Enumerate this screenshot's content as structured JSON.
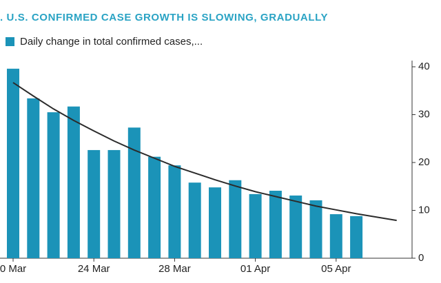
{
  "chart_data": {
    "type": "bar",
    "title": ". U.S. CONFIRMED CASE GROWTH IS SLOWING, GRADUALLY",
    "categories": [
      "0 Mar",
      null,
      null,
      null,
      "24 Mar",
      null,
      null,
      null,
      "28 Mar",
      null,
      null,
      null,
      "01 Apr",
      null,
      null,
      null,
      "05 Apr",
      null,
      null,
      null
    ],
    "series": [
      {
        "name": "Daily change in total confirmed cases,...",
        "type": "bar",
        "color": "#1b93b8",
        "values": [
          39.6,
          33.4,
          30.5,
          31.7,
          22.6,
          22.6,
          27.3,
          21.2,
          19.4,
          15.8,
          14.8,
          16.3,
          13.4,
          14.1,
          13.1,
          12.1,
          9.2,
          8.8,
          null,
          null
        ]
      },
      {
        "type": "line",
        "color": "#2b2b2b",
        "values": [
          36.7,
          33.9,
          31.2,
          28.8,
          26.6,
          24.5,
          22.6,
          20.9,
          19.2,
          17.8,
          16.4,
          15.1,
          13.9,
          12.9,
          11.9,
          10.9,
          10.1,
          9.3,
          8.6,
          7.9
        ]
      }
    ],
    "ylim": [
      0,
      40
    ],
    "yticks": [
      0,
      10,
      20,
      30,
      40
    ],
    "grid": false,
    "y_axis_side": "right"
  }
}
